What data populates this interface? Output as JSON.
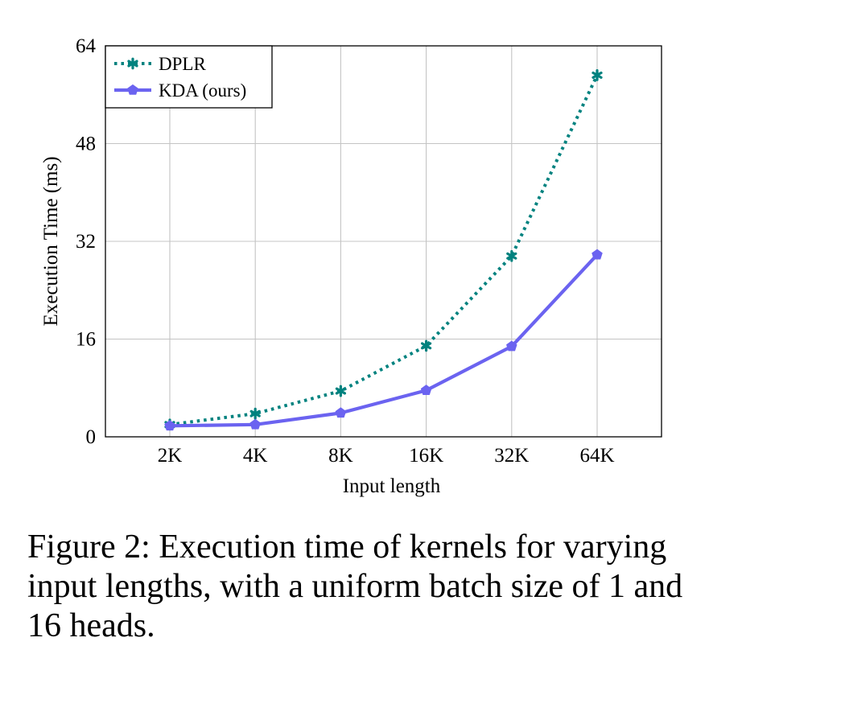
{
  "chart_data": {
    "type": "line",
    "categories": [
      "2K",
      "4K",
      "8K",
      "16K",
      "32K",
      "64K"
    ],
    "xlabel": "Input length",
    "ylabel": "Execution Time (ms)",
    "ylim": [
      0,
      64
    ],
    "yticks": [
      "0",
      "16",
      "32",
      "48",
      "64"
    ],
    "grid": true,
    "legend_position": "top-left",
    "series": [
      {
        "name": "DPLR",
        "color": "#00827f",
        "line_style": "dotted",
        "marker": "asterisk",
        "values": [
          2.0,
          3.8,
          7.5,
          14.9,
          29.6,
          59.2
        ]
      },
      {
        "name": "KDA (ours)",
        "color": "#6b63f0",
        "line_style": "solid",
        "marker": "pentagon",
        "values": [
          1.8,
          2.0,
          3.9,
          7.6,
          14.8,
          29.8
        ]
      }
    ]
  },
  "caption": "Figure 2: Execution time of kernels for varying input lengths, with a uniform batch size of 1 and 16 heads."
}
